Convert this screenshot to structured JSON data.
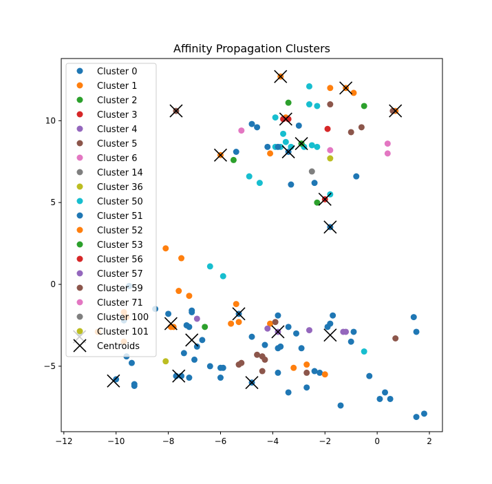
{
  "chart_data": {
    "type": "scatter",
    "title": "Affinity Propagation Clusters",
    "xlabel": "",
    "ylabel": "",
    "xlim": [
      -12.1,
      2.5
    ],
    "ylim": [
      -9.0,
      13.8
    ],
    "xticks": [
      -12,
      -10,
      -8,
      -6,
      -4,
      -2,
      0,
      2
    ],
    "yticks": [
      -5,
      0,
      5,
      10
    ],
    "grid": false,
    "legend_position": "upper-left",
    "series": [
      {
        "name": "Cluster 0",
        "color": "#1f77b4",
        "points": [
          [
            -10.0,
            -5.8
          ],
          [
            -9.3,
            -6.2
          ],
          [
            -9.3,
            -6.1
          ],
          [
            -9.4,
            -4.8
          ],
          [
            -9.6,
            -4.4
          ],
          [
            -9.5,
            -0.1
          ],
          [
            -9.7,
            -2.2
          ],
          [
            -8.5,
            -1.5
          ],
          [
            -8.0,
            -1.8
          ],
          [
            -7.7,
            -5.6
          ],
          [
            -7.5,
            -5.6
          ],
          [
            -7.2,
            -5.7
          ],
          [
            -7.4,
            -4.2
          ],
          [
            -7.3,
            -2.5
          ],
          [
            -7.2,
            -2.6
          ],
          [
            -7.1,
            -1.6
          ],
          [
            -7.1,
            -1.7
          ],
          [
            -6.9,
            -3.8
          ],
          [
            -6.7,
            -3.4
          ],
          [
            -7.0,
            -4.6
          ],
          [
            -6.4,
            -5.0
          ],
          [
            -6.0,
            -5.1
          ],
          [
            -5.9,
            -5.1
          ],
          [
            -6.0,
            -5.7
          ],
          [
            -5.3,
            -1.8
          ],
          [
            -4.8,
            -3.2
          ],
          [
            -4.8,
            -6.0
          ],
          [
            -4.3,
            -3.7
          ],
          [
            -3.8,
            -1.9
          ],
          [
            -3.8,
            -3.9
          ],
          [
            -3.7,
            -3.8
          ],
          [
            -3.8,
            -5.4
          ],
          [
            -3.4,
            -6.6
          ],
          [
            -3.4,
            -2.6
          ],
          [
            -3.1,
            -3.0
          ],
          [
            -2.9,
            -3.9
          ],
          [
            -2.7,
            -6.3
          ],
          [
            -2.4,
            -5.3
          ],
          [
            -2.2,
            -5.4
          ],
          [
            -1.9,
            -2.6
          ],
          [
            -1.8,
            -2.4
          ],
          [
            -1.7,
            -1.9
          ],
          [
            -1.4,
            -7.4
          ],
          [
            -1.0,
            -3.5
          ],
          [
            -0.9,
            -2.9
          ],
          [
            -0.3,
            -5.6
          ],
          [
            0.1,
            -7.0
          ],
          [
            0.3,
            -6.6
          ],
          [
            0.5,
            -7.0
          ],
          [
            1.4,
            -2.0
          ],
          [
            1.5,
            -2.9
          ],
          [
            1.5,
            -8.1
          ],
          [
            1.8,
            -7.9
          ],
          [
            -11.4,
            -3.0
          ]
        ]
      },
      {
        "name": "Cluster 1",
        "color": "#ff7f0e",
        "points": [
          [
            -10.7,
            -2.9
          ],
          [
            -9.7,
            -1.7
          ],
          [
            -9.6,
            -2.0
          ],
          [
            -8.1,
            2.2
          ],
          [
            -7.5,
            1.6
          ],
          [
            -7.6,
            -0.4
          ],
          [
            -7.2,
            -0.7
          ],
          [
            -7.9,
            -2.6
          ],
          [
            -7.8,
            -2.6
          ],
          [
            -6.0,
            7.9
          ],
          [
            -3.7,
            12.7
          ],
          [
            -3.5,
            10.2
          ],
          [
            -1.8,
            12.0
          ],
          [
            -1.2,
            12.0
          ],
          [
            -0.9,
            11.7
          ],
          [
            -5.6,
            -2.4
          ],
          [
            -5.4,
            -1.2
          ],
          [
            -5.3,
            -2.3
          ],
          [
            -4.1,
            8.0
          ],
          [
            -4.1,
            -2.4
          ],
          [
            -3.2,
            -5.1
          ],
          [
            -2.7,
            -4.9
          ],
          [
            -2.0,
            -5.5
          ],
          [
            0.7,
            10.6
          ],
          [
            -9.7,
            -3.5
          ]
        ]
      },
      {
        "name": "Cluster 2",
        "color": "#2ca02c",
        "points": [
          [
            -6.6,
            -2.6
          ],
          [
            -5.5,
            7.6
          ],
          [
            -3.4,
            11.1
          ],
          [
            -2.3,
            5.0
          ],
          [
            -0.5,
            10.9
          ]
        ]
      },
      {
        "name": "Cluster 3",
        "color": "#d62728",
        "points": [
          [
            -3.6,
            10.1
          ],
          [
            -3.4,
            10.1
          ],
          [
            -1.9,
            9.5
          ]
        ]
      },
      {
        "name": "Cluster 4",
        "color": "#9467bd",
        "points": [
          [
            -6.9,
            -2.1
          ],
          [
            -4.2,
            -2.7
          ],
          [
            -2.6,
            -2.8
          ],
          [
            -1.3,
            -2.9
          ],
          [
            -1.2,
            -2.9
          ]
        ]
      },
      {
        "name": "Cluster 5",
        "color": "#8c564b",
        "points": [
          [
            -7.7,
            10.6
          ],
          [
            -5.3,
            -4.9
          ],
          [
            -5.2,
            -4.8
          ],
          [
            -4.6,
            -4.3
          ],
          [
            -4.4,
            -4.4
          ],
          [
            -4.3,
            -4.6
          ],
          [
            -4.4,
            -5.3
          ],
          [
            -3.9,
            -2.3
          ],
          [
            -2.7,
            -5.4
          ],
          [
            -1.8,
            11.0
          ],
          [
            -1.0,
            9.3
          ],
          [
            -0.6,
            9.6
          ],
          [
            0.6,
            10.6
          ],
          [
            0.7,
            -3.3
          ]
        ]
      },
      {
        "name": "Cluster 6",
        "color": "#e377c2",
        "points": [
          [
            -5.2,
            9.4
          ],
          [
            -1.8,
            8.2
          ],
          [
            0.4,
            8.6
          ],
          [
            0.4,
            8.0
          ]
        ]
      },
      {
        "name": "Cluster 14",
        "color": "#7f7f7f",
        "points": [
          [
            -2.5,
            6.9
          ]
        ]
      },
      {
        "name": "Cluster 36",
        "color": "#bcbd22",
        "points": [
          [
            -8.1,
            -4.7
          ],
          [
            -1.8,
            7.7
          ]
        ]
      },
      {
        "name": "Cluster 50",
        "color": "#17becf",
        "points": [
          [
            -6.4,
            1.1
          ],
          [
            -5.9,
            0.5
          ],
          [
            -4.9,
            6.6
          ],
          [
            -4.5,
            6.2
          ],
          [
            -3.9,
            10.2
          ],
          [
            -3.9,
            8.4
          ],
          [
            -3.7,
            8.4
          ],
          [
            -3.6,
            9.2
          ],
          [
            -3.5,
            8.7
          ],
          [
            -3.3,
            8.4
          ],
          [
            -2.9,
            8.6
          ],
          [
            -2.8,
            8.4
          ],
          [
            -2.6,
            12.1
          ],
          [
            -2.6,
            11.0
          ],
          [
            -2.5,
            8.5
          ],
          [
            -2.3,
            10.9
          ],
          [
            -2.3,
            8.4
          ],
          [
            -1.8,
            5.5
          ],
          [
            -0.5,
            -4.1
          ]
        ]
      },
      {
        "name": "Cluster 51",
        "color": "#1f77b4",
        "points": [
          [
            -5.4,
            8.1
          ],
          [
            -4.8,
            9.8
          ],
          [
            -4.6,
            9.6
          ],
          [
            -4.2,
            8.4
          ],
          [
            -3.8,
            8.4
          ],
          [
            -3.4,
            8.1
          ],
          [
            -3.3,
            6.1
          ],
          [
            -3.0,
            9.7
          ],
          [
            -2.4,
            6.2
          ],
          [
            -1.8,
            3.5
          ],
          [
            -0.8,
            6.6
          ]
        ]
      },
      {
        "name": "Cluster 52",
        "color": "#ff7f0e",
        "points": []
      },
      {
        "name": "Cluster 53",
        "color": "#2ca02c",
        "points": [
          [
            -2.9,
            8.6
          ]
        ]
      },
      {
        "name": "Cluster 56",
        "color": "#d62728",
        "points": [
          [
            -2.0,
            5.2
          ]
        ]
      },
      {
        "name": "Cluster 57",
        "color": "#9467bd",
        "points": [
          [
            -3.8,
            -2.9
          ]
        ]
      },
      {
        "name": "Cluster 59",
        "color": "#8c564b",
        "points": []
      },
      {
        "name": "Cluster 71",
        "color": "#e377c2",
        "points": []
      },
      {
        "name": "Cluster 100",
        "color": "#7f7f7f",
        "points": []
      },
      {
        "name": "Cluster 101",
        "color": "#bcbd22",
        "points": []
      }
    ],
    "centroids": {
      "name": "Centroids",
      "color": "#000000",
      "points": [
        [
          -3.7,
          12.7
        ],
        [
          -1.2,
          12.0
        ],
        [
          -7.7,
          10.6
        ],
        [
          0.7,
          10.6
        ],
        [
          -3.5,
          10.1
        ],
        [
          -2.9,
          8.6
        ],
        [
          -3.4,
          8.1
        ],
        [
          -6.0,
          7.9
        ],
        [
          -2.0,
          5.2
        ],
        [
          -1.8,
          3.5
        ],
        [
          -5.3,
          -1.8
        ],
        [
          -7.9,
          -2.4
        ],
        [
          -3.8,
          -2.9
        ],
        [
          -7.1,
          -3.4
        ],
        [
          -1.8,
          -3.1
        ],
        [
          -7.6,
          -5.6
        ],
        [
          -10.1,
          -5.9
        ],
        [
          -4.8,
          -6.0
        ],
        [
          -11.4,
          -3.2
        ]
      ]
    }
  }
}
